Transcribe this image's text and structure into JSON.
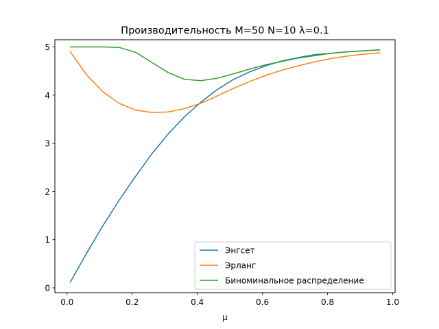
{
  "chart_data": {
    "type": "line",
    "title": "Производительность M=50 N=10 λ=0.1",
    "xlabel": "μ",
    "ylabel": "",
    "xlim": [
      -0.0375,
      1.0075
    ],
    "ylim": [
      -0.1,
      5.15
    ],
    "xticks": [
      0.0,
      0.2,
      0.4,
      0.6,
      0.8,
      1.0
    ],
    "xtick_labels": [
      "0.0",
      "0.2",
      "0.4",
      "0.6",
      "0.8",
      "1.0"
    ],
    "yticks": [
      0,
      1,
      2,
      3,
      4,
      5
    ],
    "ytick_labels": [
      "0",
      "1",
      "2",
      "3",
      "4",
      "5"
    ],
    "grid": false,
    "legend_position": "lower-right",
    "x": [
      0.01,
      0.06,
      0.11,
      0.16,
      0.21,
      0.26,
      0.31,
      0.36,
      0.41,
      0.46,
      0.51,
      0.56,
      0.61,
      0.66,
      0.71,
      0.76,
      0.81,
      0.86,
      0.91,
      0.96
    ],
    "series": [
      {
        "name": "Энгсет",
        "color": "#1f77b4",
        "values": [
          0.12,
          0.72,
          1.29,
          1.82,
          2.31,
          2.78,
          3.19,
          3.55,
          3.85,
          4.11,
          4.32,
          4.48,
          4.61,
          4.71,
          4.78,
          4.84,
          4.87,
          4.9,
          4.92,
          4.94
        ]
      },
      {
        "name": "Эрланг",
        "color": "#ff7f0e",
        "values": [
          4.9,
          4.42,
          4.07,
          3.83,
          3.69,
          3.64,
          3.65,
          3.72,
          3.83,
          3.98,
          4.14,
          4.28,
          4.41,
          4.52,
          4.61,
          4.69,
          4.76,
          4.81,
          4.85,
          4.88
        ]
      },
      {
        "name": "Биноминальное распределение",
        "color": "#2ca02c",
        "values": [
          5.0,
          5.0,
          5.0,
          4.99,
          4.89,
          4.68,
          4.47,
          4.33,
          4.3,
          4.35,
          4.44,
          4.54,
          4.63,
          4.7,
          4.77,
          4.82,
          4.87,
          4.9,
          4.92,
          4.94
        ]
      }
    ]
  }
}
